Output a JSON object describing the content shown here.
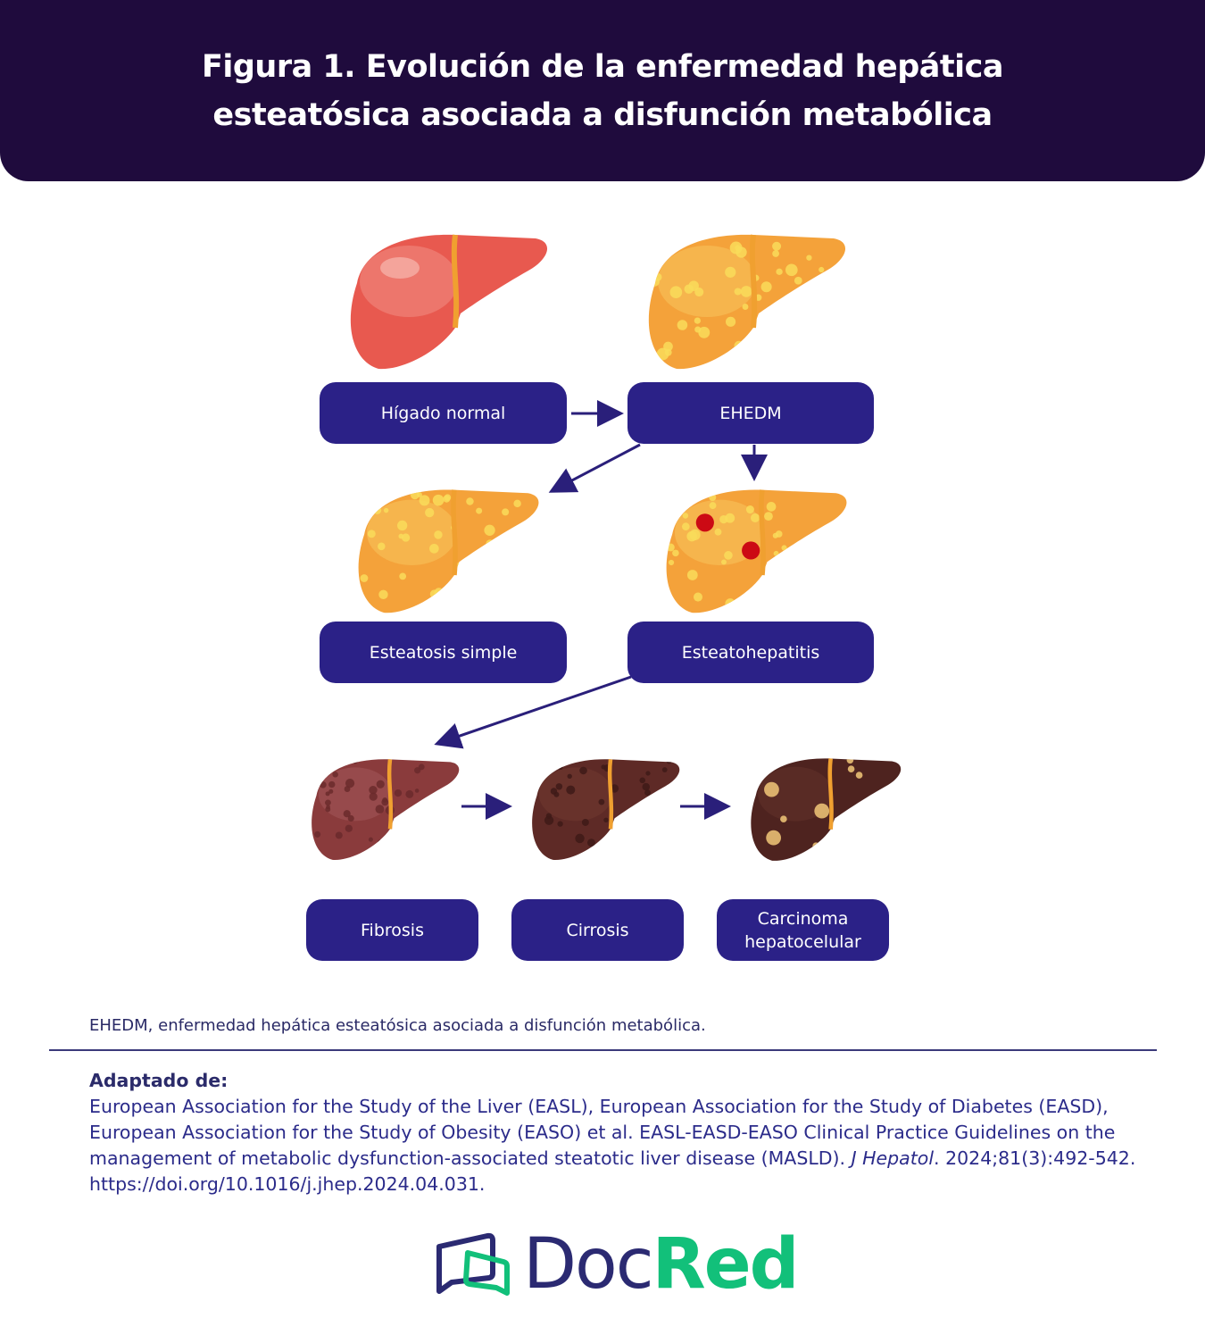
{
  "header": {
    "title": "Figura 1. Evolución de la enfermedad hepática esteatósica asociada a disfunción metabólica"
  },
  "stages": [
    {
      "label": "Hígado normal",
      "type": "normal"
    },
    {
      "label": "EHEDM",
      "type": "fatty"
    },
    {
      "label": "Esteatosis simple",
      "type": "fatty"
    },
    {
      "label": "Esteatohepatitis",
      "type": "inflamed"
    },
    {
      "label": "Fibrosis",
      "type": "fibrosis"
    },
    {
      "label": "Cirrosis",
      "type": "cirrhosis"
    },
    {
      "label": "Carcinoma hepatocelular",
      "type": "carcinoma"
    }
  ],
  "caption": "EHEDM, enfermedad hepática esteatósica asociada a disfunción metabólica.",
  "reference": {
    "heading": "Adaptado de:",
    "text": "European Association for the Study of the Liver (EASL), European Association for the Study of Diabetes (EASD), European Association for the Study of Obesity (EASO) et al. EASL-EASD-EASO Clinical Practice Guidelines on the management of metabolic dysfunction-associated steatotic liver disease (MASLD). ",
    "journal": "J Hepatol",
    "rest": ". 2024;81(3):492-542. https://doi.org/10.1016/j.jhep.2024.04.031."
  },
  "logo": {
    "part1": "Doc",
    "part2": "Red"
  },
  "colors": {
    "header": "#1f0b3d",
    "box": "#2b2187",
    "arrow": "#2a1f7a",
    "brand_navy": "#2b2a72",
    "brand_green": "#12c07a"
  }
}
